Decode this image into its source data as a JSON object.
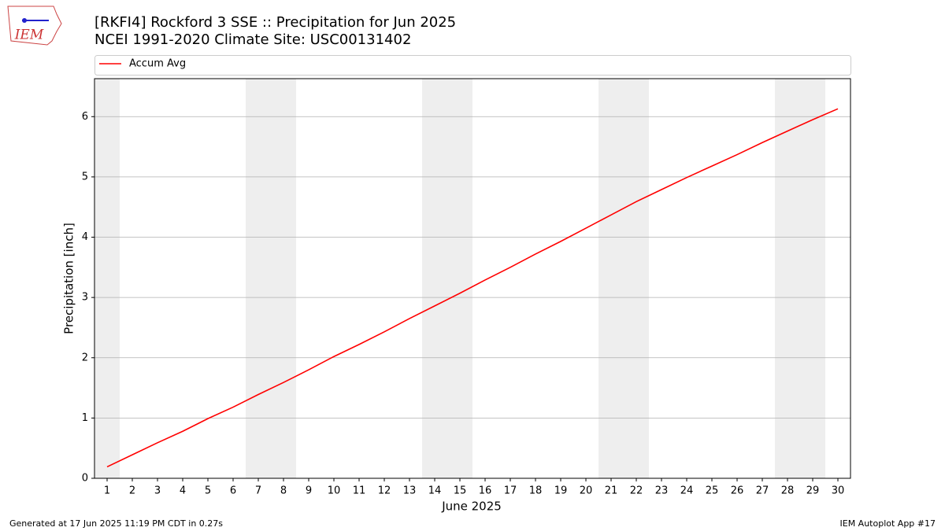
{
  "chart_data": {
    "type": "line",
    "title": "[RKFI4] Rockford 3 SSE :: Precipitation for Jun 2025",
    "subtitle": "NCEI 1991-2020 Climate Site: USC00131402",
    "xlabel": "June 2025",
    "ylabel": "Precipitation [inch]",
    "x": [
      1,
      2,
      3,
      4,
      5,
      6,
      7,
      8,
      9,
      10,
      11,
      12,
      13,
      14,
      15,
      16,
      17,
      18,
      19,
      20,
      21,
      22,
      23,
      24,
      25,
      26,
      27,
      28,
      29,
      30
    ],
    "series": [
      {
        "name": "Accum Avg",
        "color": "#ff0000",
        "values": [
          0.19,
          0.39,
          0.59,
          0.78,
          0.99,
          1.18,
          1.39,
          1.59,
          1.8,
          2.02,
          2.22,
          2.43,
          2.65,
          2.86,
          3.07,
          3.29,
          3.5,
          3.72,
          3.93,
          4.15,
          4.37,
          4.59,
          4.79,
          4.99,
          5.18,
          5.37,
          5.57,
          5.76,
          5.95,
          6.13
        ]
      }
    ],
    "weekend_days": [
      1,
      7,
      8,
      14,
      15,
      21,
      22,
      28,
      29
    ],
    "xlim": [
      0.5,
      30.5
    ],
    "ylim": [
      0,
      6.63
    ],
    "xticks": [
      1,
      2,
      3,
      4,
      5,
      6,
      7,
      8,
      9,
      10,
      11,
      12,
      13,
      14,
      15,
      16,
      17,
      18,
      19,
      20,
      21,
      22,
      23,
      24,
      25,
      26,
      27,
      28,
      29,
      30
    ],
    "yticks": [
      0,
      1,
      2,
      3,
      4,
      5,
      6
    ],
    "grid": true,
    "legend": "top"
  },
  "logo_text": "IEM",
  "footer": {
    "left": "Generated at 17 Jun 2025 11:19 PM CDT in 0.27s",
    "right": "IEM Autoplot App #17"
  }
}
